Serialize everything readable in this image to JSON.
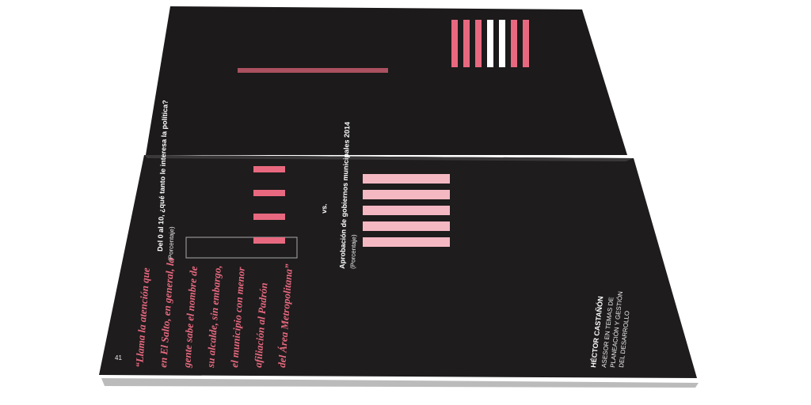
{
  "page": {
    "number": "41",
    "chart1": {
      "title": "Del 0 al 10, ¿qué tanto le interesa la política?",
      "subtitle": "(Porcentaje)"
    },
    "versus": "vs.",
    "chart2": {
      "title": "Aprobación de gobiernos municipales 2014",
      "subtitle": "(Porcentaje)"
    },
    "quote": [
      "“Llama la atención que",
      "en El Salto, en general, la",
      "gente sabe el nombre de",
      "su alcalde, sin embargo,",
      "el municipio con menor",
      "afiliación al Padrón",
      "del Área Metropolitana”"
    ],
    "author": {
      "name": "HÉCTOR CASTAÑÓN",
      "role": [
        "ASESOR EN TEMAS DE",
        "PLANEACIÓN Y GESTIÓN",
        "DEL DESARROLLO"
      ]
    }
  }
}
